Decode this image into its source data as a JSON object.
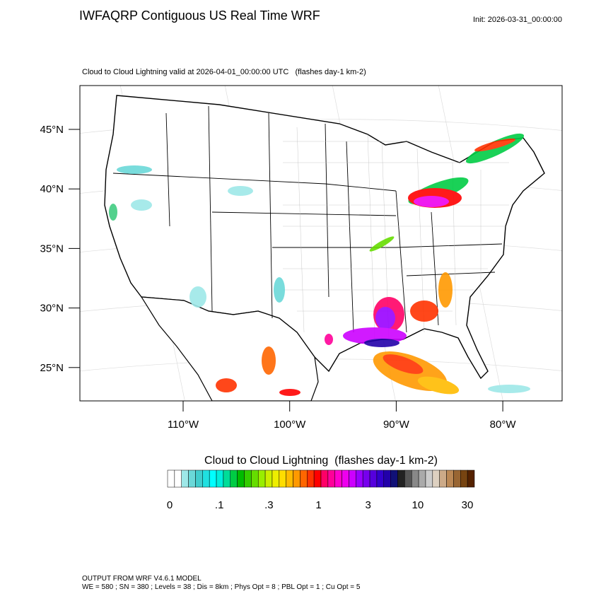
{
  "header": {
    "title": "IWFAQRP Contiguous US Real Time WRF",
    "init": "Init: 2026-03-31_00:00:00"
  },
  "map": {
    "subtitle": "Cloud to Cloud Lightning valid at 2026-04-01_00:00:00 UTC   (flashes day-1 km-2)",
    "lat_labels": [
      "45°N",
      "40°N",
      "35°N",
      "30°N",
      "25°N"
    ],
    "lon_labels": [
      "110°W",
      "100°W",
      "90°W",
      "80°W"
    ]
  },
  "colorbar": {
    "title": "Cloud to Cloud Lightning  (flashes day-1 km-2)",
    "labels": [
      "0",
      ".1",
      ".3",
      "1",
      "3",
      "10",
      "30"
    ],
    "colors": [
      "#ffffff",
      "#ffffff",
      "#9ee8e8",
      "#6ad8d8",
      "#40cccc",
      "#20e0e0",
      "#00ffff",
      "#00eedd",
      "#00dd99",
      "#00cc44",
      "#00bb00",
      "#33cc00",
      "#66dd00",
      "#99ee00",
      "#ccee00",
      "#eeee00",
      "#ffdd00",
      "#ffbb00",
      "#ff9900",
      "#ff6600",
      "#ff3300",
      "#ff0000",
      "#ff0066",
      "#ff0099",
      "#ff00cc",
      "#ee00ee",
      "#cc00ff",
      "#9900ff",
      "#7700ee",
      "#5500dd",
      "#3300cc",
      "#2200aa",
      "#111177",
      "#222222",
      "#555555",
      "#888888",
      "#aaaaaa",
      "#cccccc",
      "#ddd0c0",
      "#ccaa88",
      "#bb8855",
      "#996633",
      "#774411",
      "#552200"
    ]
  },
  "footer": {
    "line1": "OUTPUT FROM WRF V4.6.1 MODEL",
    "line2": "WE = 580 ; SN = 380 ; Levels = 38 ; Dis = 8km ; Phys Opt = 8 ; PBL Opt = 1 ; Cu Opt = 5"
  }
}
